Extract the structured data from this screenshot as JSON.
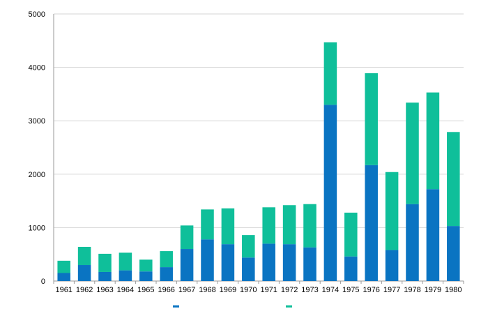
{
  "chart_data": {
    "type": "bar",
    "stacked": true,
    "title": "",
    "xlabel": "",
    "ylabel": "",
    "ylim": [
      0,
      5000
    ],
    "yticks": [
      0,
      1000,
      2000,
      3000,
      4000,
      5000
    ],
    "grid": true,
    "legend_position": "bottom",
    "categories": [
      "1961",
      "1962",
      "1963",
      "1964",
      "1965",
      "1966",
      "1967",
      "1968",
      "1969",
      "1970",
      "1971",
      "1972",
      "1973",
      "1974",
      "1975",
      "1976",
      "1977",
      "1978",
      "1979",
      "1980"
    ],
    "series": [
      {
        "color": "#0a74c2",
        "values": [
          150,
          300,
          170,
          200,
          180,
          260,
          600,
          780,
          690,
          440,
          700,
          690,
          630,
          3300,
          460,
          2170,
          580,
          1440,
          1720,
          1030
        ]
      },
      {
        "color": "#0fbf9a",
        "values": [
          230,
          340,
          340,
          330,
          220,
          300,
          440,
          560,
          670,
          420,
          680,
          730,
          810,
          1170,
          820,
          1720,
          1460,
          1900,
          1810,
          1760
        ]
      }
    ]
  }
}
